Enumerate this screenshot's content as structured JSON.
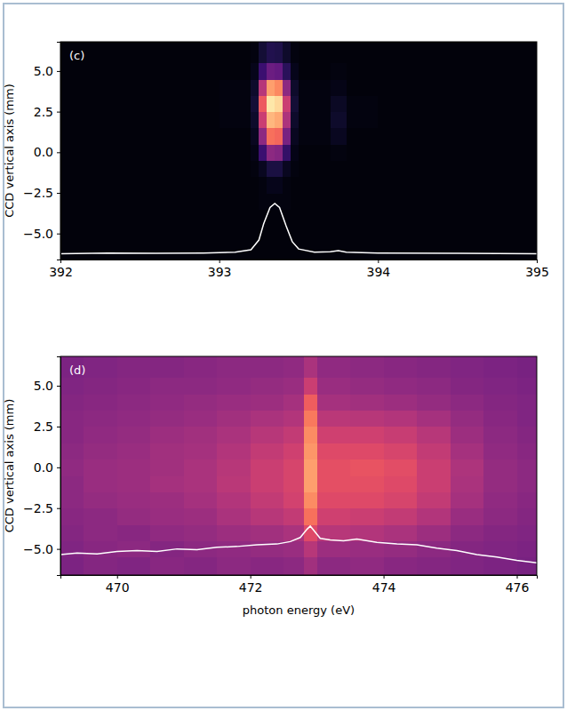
{
  "chart_data": [
    {
      "type": "heatmap",
      "label": "(c)",
      "y_label": "CCD vertical axis (mm)",
      "xlim": [
        392,
        395
      ],
      "ylim": [
        -6.6,
        6.8
      ],
      "xticks": [
        392,
        393,
        394,
        395
      ],
      "yticks": [
        {
          "value": -5,
          "label": "−5.0"
        },
        {
          "value": -2.5,
          "label": "−2.5"
        },
        {
          "value": 0,
          "label": "0.0"
        },
        {
          "value": 2.5,
          "label": "2.5"
        },
        {
          "value": 5,
          "label": "5.0"
        }
      ],
      "x_edges": [
        392,
        392.5,
        393,
        393.2,
        393.25,
        393.3,
        393.35,
        393.4,
        393.45,
        393.5,
        393.7,
        393.8,
        394,
        394.5,
        395
      ],
      "y_edges": [
        -6.6,
        -5.5,
        -4.5,
        -3.5,
        -2.5,
        -1.5,
        -0.5,
        0.5,
        1.5,
        2.5,
        3.5,
        4.5,
        5.5,
        6.8
      ],
      "color_range": [
        0,
        1
      ],
      "cells": [
        [
          0.02,
          0.02,
          0.02,
          0.02,
          0.02,
          0.02,
          0.02,
          0.02,
          0.02,
          0.02,
          0.02,
          0.02,
          0.02,
          0.02
        ],
        [
          0.02,
          0.02,
          0.02,
          0.02,
          0.02,
          0.02,
          0.02,
          0.02,
          0.02,
          0.02,
          0.02,
          0.02,
          0.02,
          0.02
        ],
        [
          0.02,
          0.02,
          0.02,
          0.02,
          0.02,
          0.02,
          0.02,
          0.02,
          0.02,
          0.02,
          0.02,
          0.02,
          0.02,
          0.02
        ],
        [
          0.02,
          0.02,
          0.02,
          0.02,
          0.03,
          0.03,
          0.03,
          0.03,
          0.02,
          0.02,
          0.02,
          0.02,
          0.02,
          0.02
        ],
        [
          0.02,
          0.02,
          0.02,
          0.02,
          0.03,
          0.05,
          0.05,
          0.03,
          0.02,
          0.02,
          0.02,
          0.02,
          0.02,
          0.02
        ],
        [
          0.02,
          0.02,
          0.02,
          0.03,
          0.06,
          0.12,
          0.12,
          0.06,
          0.03,
          0.02,
          0.02,
          0.02,
          0.02,
          0.02
        ],
        [
          0.02,
          0.02,
          0.02,
          0.04,
          0.2,
          0.4,
          0.38,
          0.18,
          0.04,
          0.02,
          0.03,
          0.02,
          0.02,
          0.02
        ],
        [
          0.02,
          0.02,
          0.02,
          0.06,
          0.4,
          0.7,
          0.68,
          0.35,
          0.06,
          0.03,
          0.06,
          0.02,
          0.02,
          0.02
        ],
        [
          0.02,
          0.02,
          0.03,
          0.08,
          0.55,
          0.85,
          0.82,
          0.48,
          0.08,
          0.03,
          0.08,
          0.03,
          0.02,
          0.02
        ],
        [
          0.02,
          0.02,
          0.03,
          0.1,
          0.65,
          0.95,
          0.92,
          0.55,
          0.1,
          0.03,
          0.07,
          0.03,
          0.02,
          0.02
        ],
        [
          0.02,
          0.02,
          0.03,
          0.08,
          0.5,
          0.8,
          0.75,
          0.4,
          0.08,
          0.03,
          0.04,
          0.02,
          0.02,
          0.02
        ],
        [
          0.02,
          0.02,
          0.02,
          0.05,
          0.2,
          0.32,
          0.3,
          0.16,
          0.05,
          0.02,
          0.03,
          0.02,
          0.02,
          0.02
        ],
        [
          0.02,
          0.02,
          0.02,
          0.03,
          0.1,
          0.14,
          0.13,
          0.08,
          0.03,
          0.02,
          0.02,
          0.02,
          0.02,
          0.02
        ]
      ],
      "series": [
        {
          "type": "line",
          "color": "#ffffff",
          "x": [
            392,
            392.3,
            392.6,
            392.9,
            393.1,
            393.2,
            393.25,
            393.28,
            393.32,
            393.35,
            393.38,
            393.42,
            393.46,
            393.5,
            393.6,
            393.7,
            393.75,
            393.8,
            394,
            394.5,
            395
          ],
          "values": [
            -6.25,
            -6.2,
            -6.22,
            -6.2,
            -6.15,
            -6.0,
            -5.4,
            -4.4,
            -3.4,
            -3.15,
            -3.4,
            -4.5,
            -5.5,
            -5.95,
            -6.15,
            -6.12,
            -6.05,
            -6.15,
            -6.2,
            -6.22,
            -6.25
          ]
        }
      ]
    },
    {
      "type": "heatmap",
      "label": "(d)",
      "y_label": "CCD vertical axis (mm)",
      "x_label": "photon energy (eV)",
      "xlim": [
        469.15,
        476.3
      ],
      "ylim": [
        -6.6,
        6.8
      ],
      "xticks": [
        470,
        472,
        474,
        476
      ],
      "yticks": [
        {
          "value": -5,
          "label": "−5.0"
        },
        {
          "value": -2.5,
          "label": "−2.5"
        },
        {
          "value": 0,
          "label": "0.0"
        },
        {
          "value": 2.5,
          "label": "2.5"
        },
        {
          "value": 5,
          "label": "5.0"
        }
      ],
      "x_edges": [
        469.15,
        469.5,
        470,
        470.5,
        471,
        471.5,
        472,
        472.5,
        472.8,
        473.0,
        473.5,
        474,
        474.5,
        475,
        475.5,
        476,
        476.3
      ],
      "y_edges": [
        -6.6,
        -5.5,
        -4.5,
        -3.5,
        -2.5,
        -1.5,
        -0.5,
        0.5,
        1.5,
        2.5,
        3.5,
        4.5,
        5.5,
        6.8
      ],
      "color_range": [
        0,
        1
      ],
      "cells": [
        [
          0.36,
          0.38,
          0.37,
          0.39,
          0.38,
          0.4,
          0.39,
          0.4,
          0.45,
          0.4,
          0.41,
          0.39,
          0.38,
          0.37,
          0.36,
          0.35
        ],
        [
          0.37,
          0.39,
          0.4,
          0.38,
          0.4,
          0.41,
          0.42,
          0.43,
          0.5,
          0.44,
          0.43,
          0.42,
          0.4,
          0.38,
          0.37,
          0.36
        ],
        [
          0.38,
          0.4,
          0.39,
          0.41,
          0.42,
          0.44,
          0.45,
          0.47,
          0.6,
          0.5,
          0.49,
          0.47,
          0.44,
          0.4,
          0.38,
          0.37
        ],
        [
          0.39,
          0.4,
          0.42,
          0.43,
          0.44,
          0.47,
          0.5,
          0.53,
          0.7,
          0.56,
          0.55,
          0.53,
          0.49,
          0.43,
          0.4,
          0.38
        ],
        [
          0.4,
          0.42,
          0.43,
          0.44,
          0.46,
          0.49,
          0.53,
          0.57,
          0.76,
          0.6,
          0.6,
          0.58,
          0.53,
          0.46,
          0.41,
          0.39
        ],
        [
          0.4,
          0.43,
          0.44,
          0.46,
          0.47,
          0.51,
          0.55,
          0.58,
          0.8,
          0.62,
          0.62,
          0.6,
          0.55,
          0.47,
          0.42,
          0.4
        ],
        [
          0.41,
          0.43,
          0.44,
          0.45,
          0.47,
          0.5,
          0.55,
          0.58,
          0.8,
          0.62,
          0.63,
          0.61,
          0.55,
          0.48,
          0.42,
          0.4
        ],
        [
          0.4,
          0.42,
          0.43,
          0.45,
          0.46,
          0.49,
          0.53,
          0.56,
          0.78,
          0.6,
          0.6,
          0.58,
          0.53,
          0.46,
          0.41,
          0.39
        ],
        [
          0.39,
          0.41,
          0.42,
          0.44,
          0.45,
          0.47,
          0.5,
          0.53,
          0.76,
          0.56,
          0.56,
          0.54,
          0.5,
          0.44,
          0.4,
          0.38
        ],
        [
          0.39,
          0.4,
          0.41,
          0.42,
          0.43,
          0.45,
          0.47,
          0.49,
          0.72,
          0.51,
          0.5,
          0.49,
          0.46,
          0.42,
          0.39,
          0.37
        ],
        [
          0.38,
          0.39,
          0.4,
          0.41,
          0.42,
          0.43,
          0.44,
          0.46,
          0.66,
          0.46,
          0.45,
          0.44,
          0.42,
          0.4,
          0.38,
          0.37
        ],
        [
          0.37,
          0.38,
          0.39,
          0.4,
          0.4,
          0.41,
          0.42,
          0.43,
          0.55,
          0.43,
          0.42,
          0.41,
          0.4,
          0.38,
          0.37,
          0.36
        ],
        [
          0.36,
          0.37,
          0.38,
          0.38,
          0.39,
          0.4,
          0.4,
          0.41,
          0.47,
          0.41,
          0.4,
          0.39,
          0.38,
          0.37,
          0.36,
          0.35
        ]
      ],
      "series": [
        {
          "type": "line",
          "color": "#ffffff",
          "x": [
            469.15,
            469.4,
            469.7,
            470,
            470.3,
            470.6,
            470.9,
            471.2,
            471.5,
            471.8,
            472.1,
            472.4,
            472.6,
            472.75,
            472.85,
            472.9,
            472.95,
            473.05,
            473.2,
            473.4,
            473.6,
            473.9,
            474.2,
            474.5,
            474.8,
            475.1,
            475.4,
            475.7,
            476,
            476.3
          ],
          "values": [
            -5.35,
            -5.25,
            -5.3,
            -5.15,
            -5.1,
            -5.15,
            -5.0,
            -5.05,
            -4.9,
            -4.85,
            -4.75,
            -4.7,
            -4.55,
            -4.3,
            -3.8,
            -3.6,
            -3.85,
            -4.35,
            -4.45,
            -4.5,
            -4.4,
            -4.6,
            -4.7,
            -4.75,
            -4.95,
            -5.1,
            -5.35,
            -5.5,
            -5.7,
            -5.85
          ]
        }
      ]
    }
  ]
}
